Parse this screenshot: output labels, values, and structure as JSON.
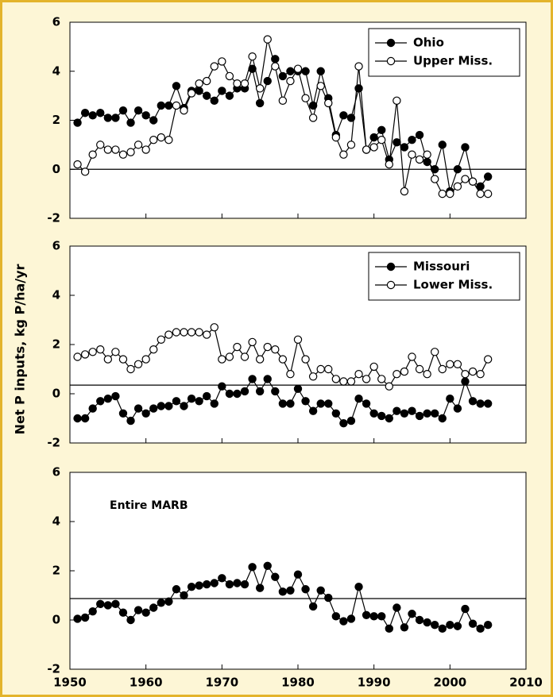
{
  "ylabel": "Net P inputs, kg P/ha/yr",
  "chart_data": [
    {
      "type": "line",
      "legend": "upper right",
      "reference_line": 0,
      "x": [
        1951,
        1952,
        1953,
        1954,
        1955,
        1956,
        1957,
        1958,
        1959,
        1960,
        1961,
        1962,
        1963,
        1964,
        1965,
        1966,
        1967,
        1968,
        1969,
        1970,
        1971,
        1972,
        1973,
        1974,
        1975,
        1976,
        1977,
        1978,
        1979,
        1980,
        1981,
        1982,
        1983,
        1984,
        1985,
        1986,
        1987,
        1988,
        1989,
        1990,
        1991,
        1992,
        1993,
        1994,
        1995,
        1996,
        1997,
        1998,
        1999,
        2000,
        2001,
        2002,
        2003,
        2004,
        2005
      ],
      "xlim": [
        1950,
        2010
      ],
      "xticks": [
        1950,
        1960,
        1970,
        1980,
        1990,
        2000,
        2010
      ],
      "ylim": [
        -2,
        6
      ],
      "yticks": [
        -2,
        0,
        2,
        4,
        6
      ],
      "series": [
        {
          "name": "Ohio",
          "color": "#000000",
          "marker_fill": "#000000",
          "values": [
            1.9,
            2.3,
            2.2,
            2.3,
            2.1,
            2.1,
            2.4,
            1.9,
            2.4,
            2.2,
            2.0,
            2.6,
            2.6,
            3.4,
            2.5,
            3.2,
            3.2,
            3.0,
            2.8,
            3.2,
            3.0,
            3.3,
            3.3,
            4.1,
            2.7,
            3.6,
            4.5,
            3.8,
            4.0,
            4.0,
            4.0,
            2.6,
            4.0,
            2.9,
            1.4,
            2.2,
            2.1,
            3.3,
            0.8,
            1.3,
            1.6,
            0.4,
            1.1,
            0.9,
            1.2,
            1.4,
            0.3,
            0.0,
            1.0,
            -0.9,
            0.0,
            0.9,
            -0.5,
            -0.7,
            -0.3
          ]
        },
        {
          "name": "Upper Miss.",
          "color": "#000000",
          "marker_fill": "#ffffff",
          "values": [
            0.2,
            -0.1,
            0.6,
            1.0,
            0.8,
            0.8,
            0.6,
            0.7,
            1.0,
            0.8,
            1.2,
            1.3,
            1.2,
            2.6,
            2.4,
            3.1,
            3.5,
            3.6,
            4.2,
            4.4,
            3.8,
            3.5,
            3.5,
            4.6,
            3.3,
            5.3,
            4.2,
            2.8,
            3.6,
            4.1,
            2.9,
            2.1,
            3.4,
            2.7,
            1.3,
            0.6,
            1.0,
            4.2,
            0.8,
            0.9,
            1.2,
            0.2,
            2.8,
            -0.9,
            0.6,
            0.4,
            0.6,
            -0.4,
            -1.0,
            -1.0,
            -0.7,
            -0.4,
            -0.5,
            -1.0,
            -1.0
          ]
        }
      ]
    },
    {
      "type": "line",
      "legend": "upper right",
      "reference_line": 0.35,
      "x": [
        1951,
        1952,
        1953,
        1954,
        1955,
        1956,
        1957,
        1958,
        1959,
        1960,
        1961,
        1962,
        1963,
        1964,
        1965,
        1966,
        1967,
        1968,
        1969,
        1970,
        1971,
        1972,
        1973,
        1974,
        1975,
        1976,
        1977,
        1978,
        1979,
        1980,
        1981,
        1982,
        1983,
        1984,
        1985,
        1986,
        1987,
        1988,
        1989,
        1990,
        1991,
        1992,
        1993,
        1994,
        1995,
        1996,
        1997,
        1998,
        1999,
        2000,
        2001,
        2002,
        2003,
        2004,
        2005
      ],
      "xlim": [
        1950,
        2010
      ],
      "xticks": [
        1950,
        1960,
        1970,
        1980,
        1990,
        2000,
        2010
      ],
      "ylim": [
        -2,
        6
      ],
      "yticks": [
        -2,
        0,
        2,
        4,
        6
      ],
      "series": [
        {
          "name": "Missouri",
          "color": "#000000",
          "marker_fill": "#000000",
          "values": [
            -1.0,
            -1.0,
            -0.6,
            -0.3,
            -0.2,
            -0.1,
            -0.8,
            -1.1,
            -0.6,
            -0.8,
            -0.6,
            -0.5,
            -0.5,
            -0.3,
            -0.5,
            -0.2,
            -0.3,
            -0.1,
            -0.4,
            0.3,
            0.0,
            0.0,
            0.1,
            0.6,
            0.1,
            0.6,
            0.1,
            -0.4,
            -0.4,
            0.2,
            -0.3,
            -0.7,
            -0.4,
            -0.4,
            -0.8,
            -1.2,
            -1.1,
            -0.2,
            -0.4,
            -0.8,
            -0.9,
            -1.0,
            -0.7,
            -0.8,
            -0.7,
            -0.9,
            -0.8,
            -0.8,
            -1.0,
            -0.2,
            -0.6,
            0.5,
            -0.3,
            -0.4,
            -0.4
          ]
        },
        {
          "name": "Lower Miss.",
          "color": "#000000",
          "marker_fill": "#ffffff",
          "values": [
            1.5,
            1.6,
            1.7,
            1.8,
            1.4,
            1.7,
            1.4,
            1.0,
            1.2,
            1.4,
            1.8,
            2.2,
            2.4,
            2.5,
            2.5,
            2.5,
            2.5,
            2.4,
            2.7,
            1.4,
            1.5,
            1.9,
            1.5,
            2.1,
            1.4,
            1.9,
            1.8,
            1.4,
            0.8,
            2.2,
            1.4,
            0.7,
            1.0,
            1.0,
            0.6,
            0.5,
            0.5,
            0.8,
            0.6,
            1.1,
            0.6,
            0.3,
            0.8,
            0.9,
            1.5,
            1.0,
            0.8,
            1.7,
            1.0,
            1.2,
            1.2,
            0.8,
            0.9,
            0.8,
            1.4
          ]
        }
      ]
    },
    {
      "type": "line",
      "annotation": "Entire MARB",
      "reference_line": 0.87,
      "x": [
        1951,
        1952,
        1953,
        1954,
        1955,
        1956,
        1957,
        1958,
        1959,
        1960,
        1961,
        1962,
        1963,
        1964,
        1965,
        1966,
        1967,
        1968,
        1969,
        1970,
        1971,
        1972,
        1973,
        1974,
        1975,
        1976,
        1977,
        1978,
        1979,
        1980,
        1981,
        1982,
        1983,
        1984,
        1985,
        1986,
        1987,
        1988,
        1989,
        1990,
        1991,
        1992,
        1993,
        1994,
        1995,
        1996,
        1997,
        1998,
        1999,
        2000,
        2001,
        2002,
        2003,
        2004,
        2005
      ],
      "xlim": [
        1950,
        2010
      ],
      "xticks": [
        1950,
        1960,
        1970,
        1980,
        1990,
        2000,
        2010
      ],
      "ylim": [
        -2,
        6
      ],
      "yticks": [
        -2,
        0,
        2,
        4,
        6
      ],
      "series": [
        {
          "color": "#000000",
          "marker_fill": "#000000",
          "values": [
            0.05,
            0.1,
            0.35,
            0.65,
            0.6,
            0.65,
            0.3,
            0.0,
            0.4,
            0.3,
            0.5,
            0.7,
            0.75,
            1.25,
            1.0,
            1.35,
            1.4,
            1.45,
            1.5,
            1.7,
            1.45,
            1.5,
            1.45,
            2.15,
            1.3,
            2.2,
            1.75,
            1.15,
            1.2,
            1.85,
            1.25,
            0.55,
            1.2,
            0.9,
            0.15,
            -0.05,
            0.05,
            1.35,
            0.2,
            0.15,
            0.15,
            -0.35,
            0.5,
            -0.3,
            0.25,
            0.0,
            -0.1,
            -0.2,
            -0.35,
            -0.2,
            -0.25,
            0.45,
            -0.15,
            -0.35,
            -0.2
          ]
        }
      ]
    }
  ]
}
